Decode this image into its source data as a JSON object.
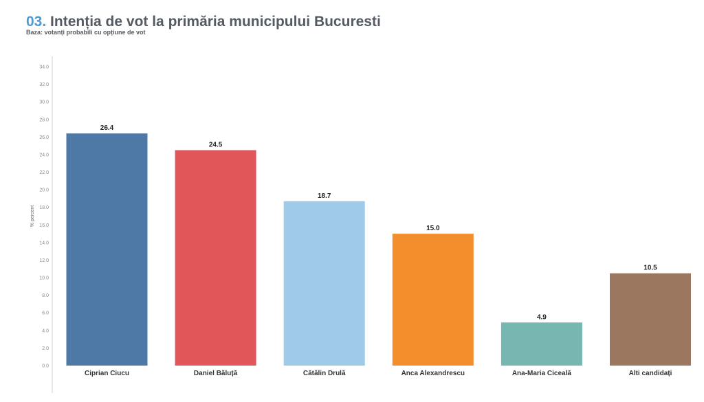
{
  "chart_data": {
    "type": "bar",
    "title_number": "03.",
    "title": "Intenția de vot la primăria municipului Bucuresti",
    "subtitle": "Baza: votanți probabili cu opțiune de vot",
    "ylabel": "% percent",
    "xlabel": "",
    "ylim": [
      0,
      34
    ],
    "y_ticks": [
      "0.0",
      "2.0",
      "4.0",
      "6.0",
      "8.0",
      "10.0",
      "12.0",
      "14.0",
      "16.0",
      "18.0",
      "20.0",
      "22.0",
      "24.0",
      "26.0",
      "28.0",
      "30.0",
      "32.0",
      "34.0"
    ],
    "categories": [
      "Ciprian Ciucu",
      "Daniel Băluță",
      "Cătălin Drulă",
      "Anca Alexandrescu",
      "Ana-Maria Ciceală",
      "Alti candidați"
    ],
    "values": [
      26.4,
      24.5,
      18.7,
      15.0,
      4.9,
      10.5
    ],
    "value_labels": [
      "26.4",
      "24.5",
      "18.7",
      "15.0",
      "4.9",
      "10.5"
    ],
    "colors": [
      "#4e79a7",
      "#e15759",
      "#a0cbe8",
      "#f28e2b",
      "#76b7b2",
      "#9c7760"
    ],
    "grid": false,
    "legend": "none"
  }
}
